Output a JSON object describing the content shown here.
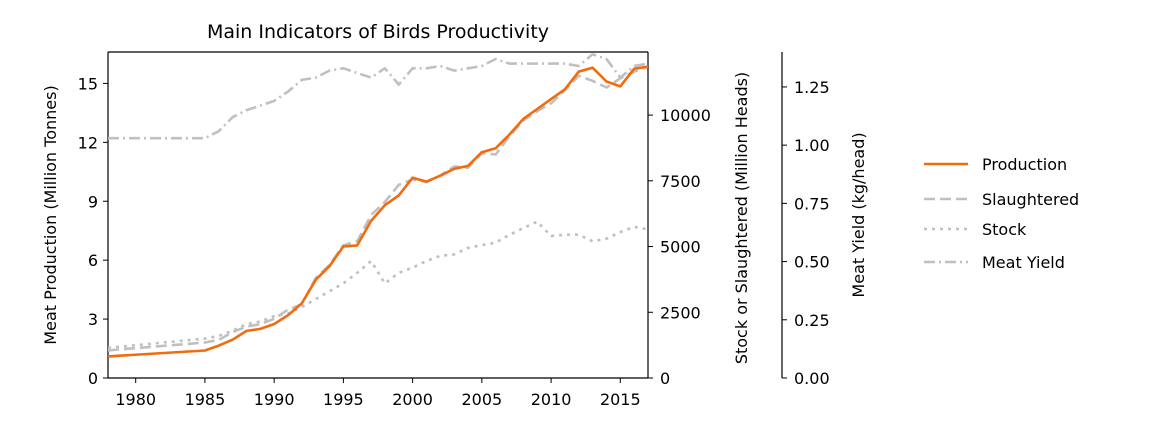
{
  "chart_data": {
    "type": "line",
    "title": "Main Indicators of Birds Productivity",
    "xlabel": "",
    "xlim": [
      1978,
      2017
    ],
    "x_ticks": [
      1980,
      1985,
      1990,
      1995,
      2000,
      2005,
      2010,
      2015
    ],
    "axes": {
      "left": {
        "label": "Meat Production (Million Tonnes)",
        "lim": [
          0,
          16.6
        ],
        "ticks": [
          0,
          3,
          6,
          9,
          12,
          15
        ]
      },
      "right1": {
        "label": "Stock or Slaughtered (Million Heads)",
        "lim": [
          0,
          12400
        ],
        "ticks": [
          0,
          2500,
          5000,
          7500,
          10000
        ]
      },
      "right2": {
        "label": "Meat Yield (kg/head)",
        "lim": [
          0,
          1.4
        ],
        "ticks": [
          "0.00",
          "0.25",
          "0.50",
          "0.75",
          "1.00",
          "1.25"
        ]
      }
    },
    "legend_position": "right",
    "series": [
      {
        "name": "Production",
        "axis": "left",
        "color": "#f26b0f",
        "style": "solid",
        "x": [
          1978,
          1985,
          1986,
          1987,
          1988,
          1989,
          1990,
          1991,
          1992,
          1993,
          1994,
          1995,
          1996,
          1997,
          1998,
          1999,
          2000,
          2001,
          2002,
          2003,
          2004,
          2005,
          2006,
          2007,
          2008,
          2009,
          2010,
          2011,
          2012,
          2013,
          2014,
          2015,
          2016,
          2017
        ],
        "values": [
          1.1,
          1.4,
          1.65,
          1.95,
          2.4,
          2.5,
          2.75,
          3.2,
          3.8,
          5.0,
          5.7,
          6.7,
          6.75,
          8.0,
          8.8,
          9.3,
          10.2,
          10.0,
          10.3,
          10.65,
          10.8,
          11.5,
          11.7,
          12.4,
          13.2,
          13.7,
          14.2,
          14.7,
          15.6,
          15.8,
          15.1,
          14.85,
          15.75,
          15.85
        ]
      },
      {
        "name": "Slaughtered",
        "axis": "right1",
        "color": "#c0c0c0",
        "style": "dashed",
        "x": [
          1978,
          1985,
          1986,
          1987,
          1988,
          1989,
          1990,
          1991,
          1992,
          1993,
          1994,
          1995,
          1996,
          1997,
          1998,
          1999,
          2000,
          2001,
          2002,
          2003,
          2004,
          2005,
          2006,
          2007,
          2008,
          2009,
          2010,
          2011,
          2012,
          2013,
          2014,
          2015,
          2016,
          2017
        ],
        "values": [
          1050,
          1350,
          1450,
          1750,
          1950,
          2050,
          2250,
          2600,
          2800,
          3800,
          4300,
          5050,
          5200,
          6200,
          6700,
          7350,
          7550,
          7450,
          7700,
          8050,
          8000,
          8550,
          8500,
          9200,
          9800,
          10150,
          10450,
          10950,
          11500,
          11300,
          11050,
          11400,
          11650,
          11850
        ]
      },
      {
        "name": "Stock",
        "axis": "right1",
        "color": "#c0c0c0",
        "style": "dotted",
        "x": [
          1978,
          1985,
          1986,
          1987,
          1988,
          1989,
          1990,
          1991,
          1992,
          1993,
          1994,
          1995,
          1996,
          1997,
          1998,
          1999,
          2000,
          2001,
          2002,
          2003,
          2004,
          2005,
          2006,
          2007,
          2008,
          2009,
          2010,
          2011,
          2012,
          2013,
          2014,
          2015,
          2016,
          2017
        ],
        "values": [
          1150,
          1500,
          1600,
          1800,
          2050,
          2150,
          2350,
          2450,
          2700,
          3000,
          3300,
          3600,
          4000,
          4450,
          3600,
          4000,
          4200,
          4450,
          4650,
          4700,
          4950,
          5050,
          5150,
          5450,
          5700,
          5950,
          5400,
          5450,
          5450,
          5200,
          5300,
          5550,
          5750,
          5650
        ]
      },
      {
        "name": "Meat Yield",
        "axis": "right2",
        "color": "#c0c0c0",
        "style": "dashdot",
        "x": [
          1978,
          1985,
          1986,
          1987,
          1988,
          1989,
          1990,
          1991,
          1992,
          1993,
          1994,
          1995,
          1996,
          1997,
          1998,
          1999,
          2000,
          2001,
          2002,
          2003,
          2004,
          2005,
          2006,
          2007,
          2008,
          2009,
          2010,
          2011,
          2012,
          2013,
          2014,
          2015,
          2016,
          2017
        ],
        "values": [
          1.03,
          1.03,
          1.06,
          1.12,
          1.15,
          1.17,
          1.19,
          1.23,
          1.28,
          1.29,
          1.32,
          1.33,
          1.31,
          1.29,
          1.33,
          1.26,
          1.33,
          1.33,
          1.34,
          1.32,
          1.33,
          1.34,
          1.37,
          1.35,
          1.35,
          1.35,
          1.35,
          1.35,
          1.34,
          1.39,
          1.37,
          1.29,
          1.34,
          1.35
        ]
      }
    ]
  }
}
